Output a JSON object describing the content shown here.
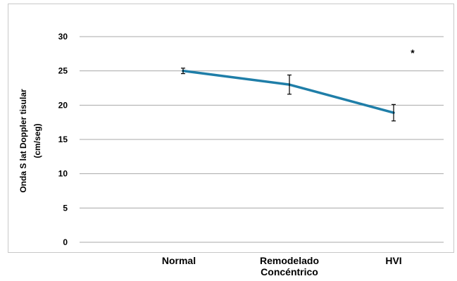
{
  "chart_data": {
    "type": "line",
    "categories": [
      "Normal",
      "Remodelado Concéntrico",
      "HVI"
    ],
    "category_lines": [
      [
        "Normal"
      ],
      [
        "Remodelado",
        "Concéntrico"
      ],
      [
        "HVI"
      ]
    ],
    "series": [
      {
        "values": [
          25.0,
          23.0,
          18.9
        ],
        "error": [
          0.4,
          1.4,
          1.2
        ],
        "color": "#1f7ea8"
      }
    ],
    "ylabel": "Onda S lat Doppler tisular",
    "ylabel_unit": "(cm/seg)",
    "ylim": [
      0,
      30
    ],
    "yticks": [
      0,
      5,
      10,
      15,
      20,
      25,
      30
    ],
    "annotation": "*",
    "grid": true,
    "legend": "none"
  }
}
